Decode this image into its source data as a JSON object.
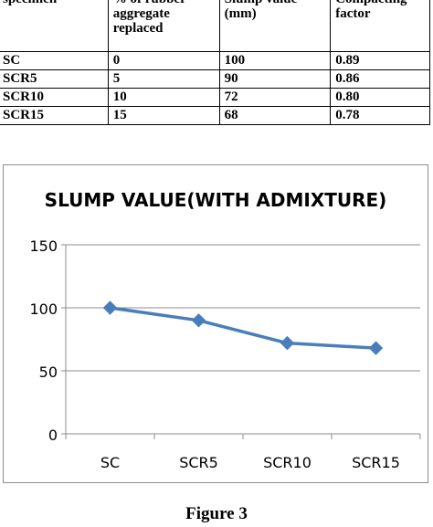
{
  "table": {
    "headers": [
      "specimen",
      "% of rubber aggregate replaced",
      "Slump value (mm)",
      "Compacting factor"
    ],
    "rows": [
      [
        "SC",
        "0",
        "100",
        "0.89"
      ],
      [
        "SCR5",
        "5",
        "90",
        "0.86"
      ],
      [
        "SCR10",
        "10",
        "72",
        "0.80"
      ],
      [
        "SCR15",
        "15",
        "68",
        "0.78"
      ]
    ]
  },
  "chart_data": {
    "type": "line",
    "title": "SLUMP VALUE(WITH ADMIXTURE)",
    "categories": [
      "SC",
      "SCR5",
      "SCR10",
      "SCR15"
    ],
    "series": [
      {
        "values": [
          100,
          90,
          72,
          68
        ],
        "color": "#4a7ebb",
        "marker": "diamond"
      }
    ],
    "xlabel": "",
    "ylabel": "",
    "ylim": [
      0,
      150
    ],
    "yticks": [
      0,
      50,
      100,
      150
    ],
    "grid": "horizontal",
    "legend": "none"
  },
  "caption": "Figure 3"
}
